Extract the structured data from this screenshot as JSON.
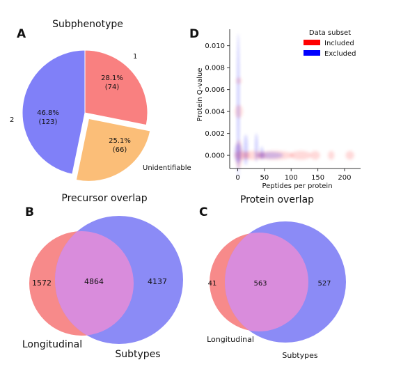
{
  "panel_letters": {
    "a": "A",
    "b": "B",
    "c": "C",
    "d": "D"
  },
  "colors": {
    "slice_1": "#f98080",
    "slice_2": "#8080f8",
    "slice_unidentifiable": "#fbbe78",
    "venn_left": "#f78a8a",
    "venn_right": "#8b8bf6",
    "venn_overlap": "#d98cdc",
    "included": "#ff0000",
    "excluded": "#0000ff"
  },
  "chart_data": [
    {
      "id": "pie",
      "type": "pie",
      "title": "Subphenotype",
      "slices": [
        {
          "label": "1",
          "percent": "28.1%",
          "count": "(74)",
          "value": 74,
          "color": "#f98080",
          "exploded": false
        },
        {
          "label": "Unidentifiable",
          "percent": "25.1%",
          "count": "(66)",
          "value": 66,
          "color": "#fbbe78",
          "exploded": true
        },
        {
          "label": "2",
          "percent": "46.8%",
          "count": "(123)",
          "value": 123,
          "color": "#8080f8",
          "exploded": false
        }
      ]
    },
    {
      "id": "venn_precursor",
      "type": "venn",
      "title": "Precursor overlap",
      "sets": [
        {
          "name": "Longitudinal",
          "only": 1572
        },
        {
          "name": "Subtypes",
          "only": 4137
        }
      ],
      "overlap": 4864
    },
    {
      "id": "venn_protein",
      "type": "venn",
      "title": "Protein overlap",
      "sets": [
        {
          "name": "Longitudinal",
          "only": 41
        },
        {
          "name": "Subtypes",
          "only": 527
        }
      ],
      "overlap": 563
    },
    {
      "id": "density",
      "type": "scatter",
      "xlabel": "Peptides per protein",
      "ylabel": "Protein Q-value",
      "xlim": [
        -15,
        230
      ],
      "ylim": [
        -0.0012,
        0.0115
      ],
      "xticks": [
        0,
        50,
        100,
        150,
        200
      ],
      "yticks": [
        0.0,
        0.002,
        0.004,
        0.006,
        0.008,
        0.01
      ],
      "ytick_labels": [
        "0.000",
        "0.002",
        "0.004",
        "0.006",
        "0.008",
        "0.010"
      ],
      "legend": {
        "title": "Data subset",
        "placement": "top-right",
        "entries": [
          {
            "name": "Included",
            "color": "#ff0000"
          },
          {
            "name": "Excluded",
            "color": "#0000ff"
          }
        ]
      },
      "series": [
        {
          "name": "Included",
          "color": "#ff0000",
          "blobs": [
            {
              "x": 2,
              "y": 0.0001,
              "rx": 6,
              "ry": 0.0013
            },
            {
              "x": 2,
              "y": 0.004,
              "rx": 7,
              "ry": 0.0006
            },
            {
              "x": 2,
              "y": 0.0068,
              "rx": 5,
              "ry": 0.0003
            },
            {
              "x": 8,
              "y": 0.0,
              "rx": 14,
              "ry": 0.0004
            },
            {
              "x": 30,
              "y": 0.0,
              "rx": 22,
              "ry": 0.0004
            },
            {
              "x": 70,
              "y": 0.0,
              "rx": 35,
              "ry": 0.0004
            },
            {
              "x": 118,
              "y": 0.0,
              "rx": 20,
              "ry": 0.0004
            },
            {
              "x": 145,
              "y": 0.0,
              "rx": 9,
              "ry": 0.0004
            },
            {
              "x": 175,
              "y": 0.0,
              "rx": 6,
              "ry": 0.0004
            },
            {
              "x": 210,
              "y": 0.0,
              "rx": 8,
              "ry": 0.0004
            }
          ]
        },
        {
          "name": "Excluded",
          "color": "#0000ff",
          "blobs": [
            {
              "x": 1,
              "y": 0.0045,
              "rx": 3,
              "ry": 0.0066
            },
            {
              "x": 1,
              "y": 0.0002,
              "rx": 7,
              "ry": 0.0009
            },
            {
              "x": 15,
              "y": 0.0005,
              "rx": 4,
              "ry": 0.0014
            },
            {
              "x": 35,
              "y": 0.0007,
              "rx": 3,
              "ry": 0.0013
            },
            {
              "x": 45,
              "y": 0.0002,
              "rx": 3,
              "ry": 0.0006
            },
            {
              "x": 60,
              "y": 0.0,
              "rx": 25,
              "ry": 0.0003
            }
          ]
        }
      ]
    }
  ]
}
